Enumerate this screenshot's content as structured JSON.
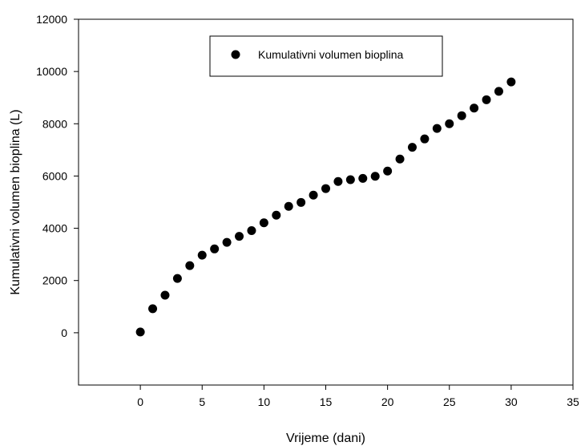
{
  "chart_data": {
    "type": "scatter",
    "title": "",
    "xlabel": "Vrijeme (dani)",
    "ylabel": "Kumulativni volumen bioplina (L)",
    "xlim": [
      -5,
      35
    ],
    "ylim": [
      -2000,
      12000
    ],
    "xticks": [
      0,
      5,
      10,
      15,
      20,
      25,
      30,
      35
    ],
    "yticks": [
      0,
      2000,
      4000,
      6000,
      8000,
      10000,
      12000
    ],
    "xtick_labels": [
      "0",
      "5",
      "10",
      "15",
      "20",
      "25",
      "30",
      "35"
    ],
    "ytick_labels": [
      "0",
      "2000",
      "4000",
      "6000",
      "8000",
      "10000",
      "12000"
    ],
    "grid": false,
    "legend_position": "top-center",
    "series": [
      {
        "name": "Kumulativni volumen bioplina",
        "color": "#000000",
        "marker": "circle",
        "x": [
          0,
          1,
          2,
          3,
          4,
          5,
          6,
          7,
          8,
          9,
          10,
          11,
          12,
          13,
          14,
          15,
          16,
          17,
          18,
          19,
          20,
          21,
          22,
          23,
          24,
          25,
          26,
          27,
          28,
          29,
          30
        ],
        "y": [
          30,
          920,
          1440,
          2080,
          2570,
          2970,
          3210,
          3460,
          3690,
          3910,
          4210,
          4500,
          4840,
          4990,
          5270,
          5520,
          5790,
          5860,
          5910,
          5990,
          6190,
          6650,
          7100,
          7420,
          7820,
          8000,
          8310,
          8600,
          8920,
          9240,
          9600
        ]
      }
    ]
  }
}
